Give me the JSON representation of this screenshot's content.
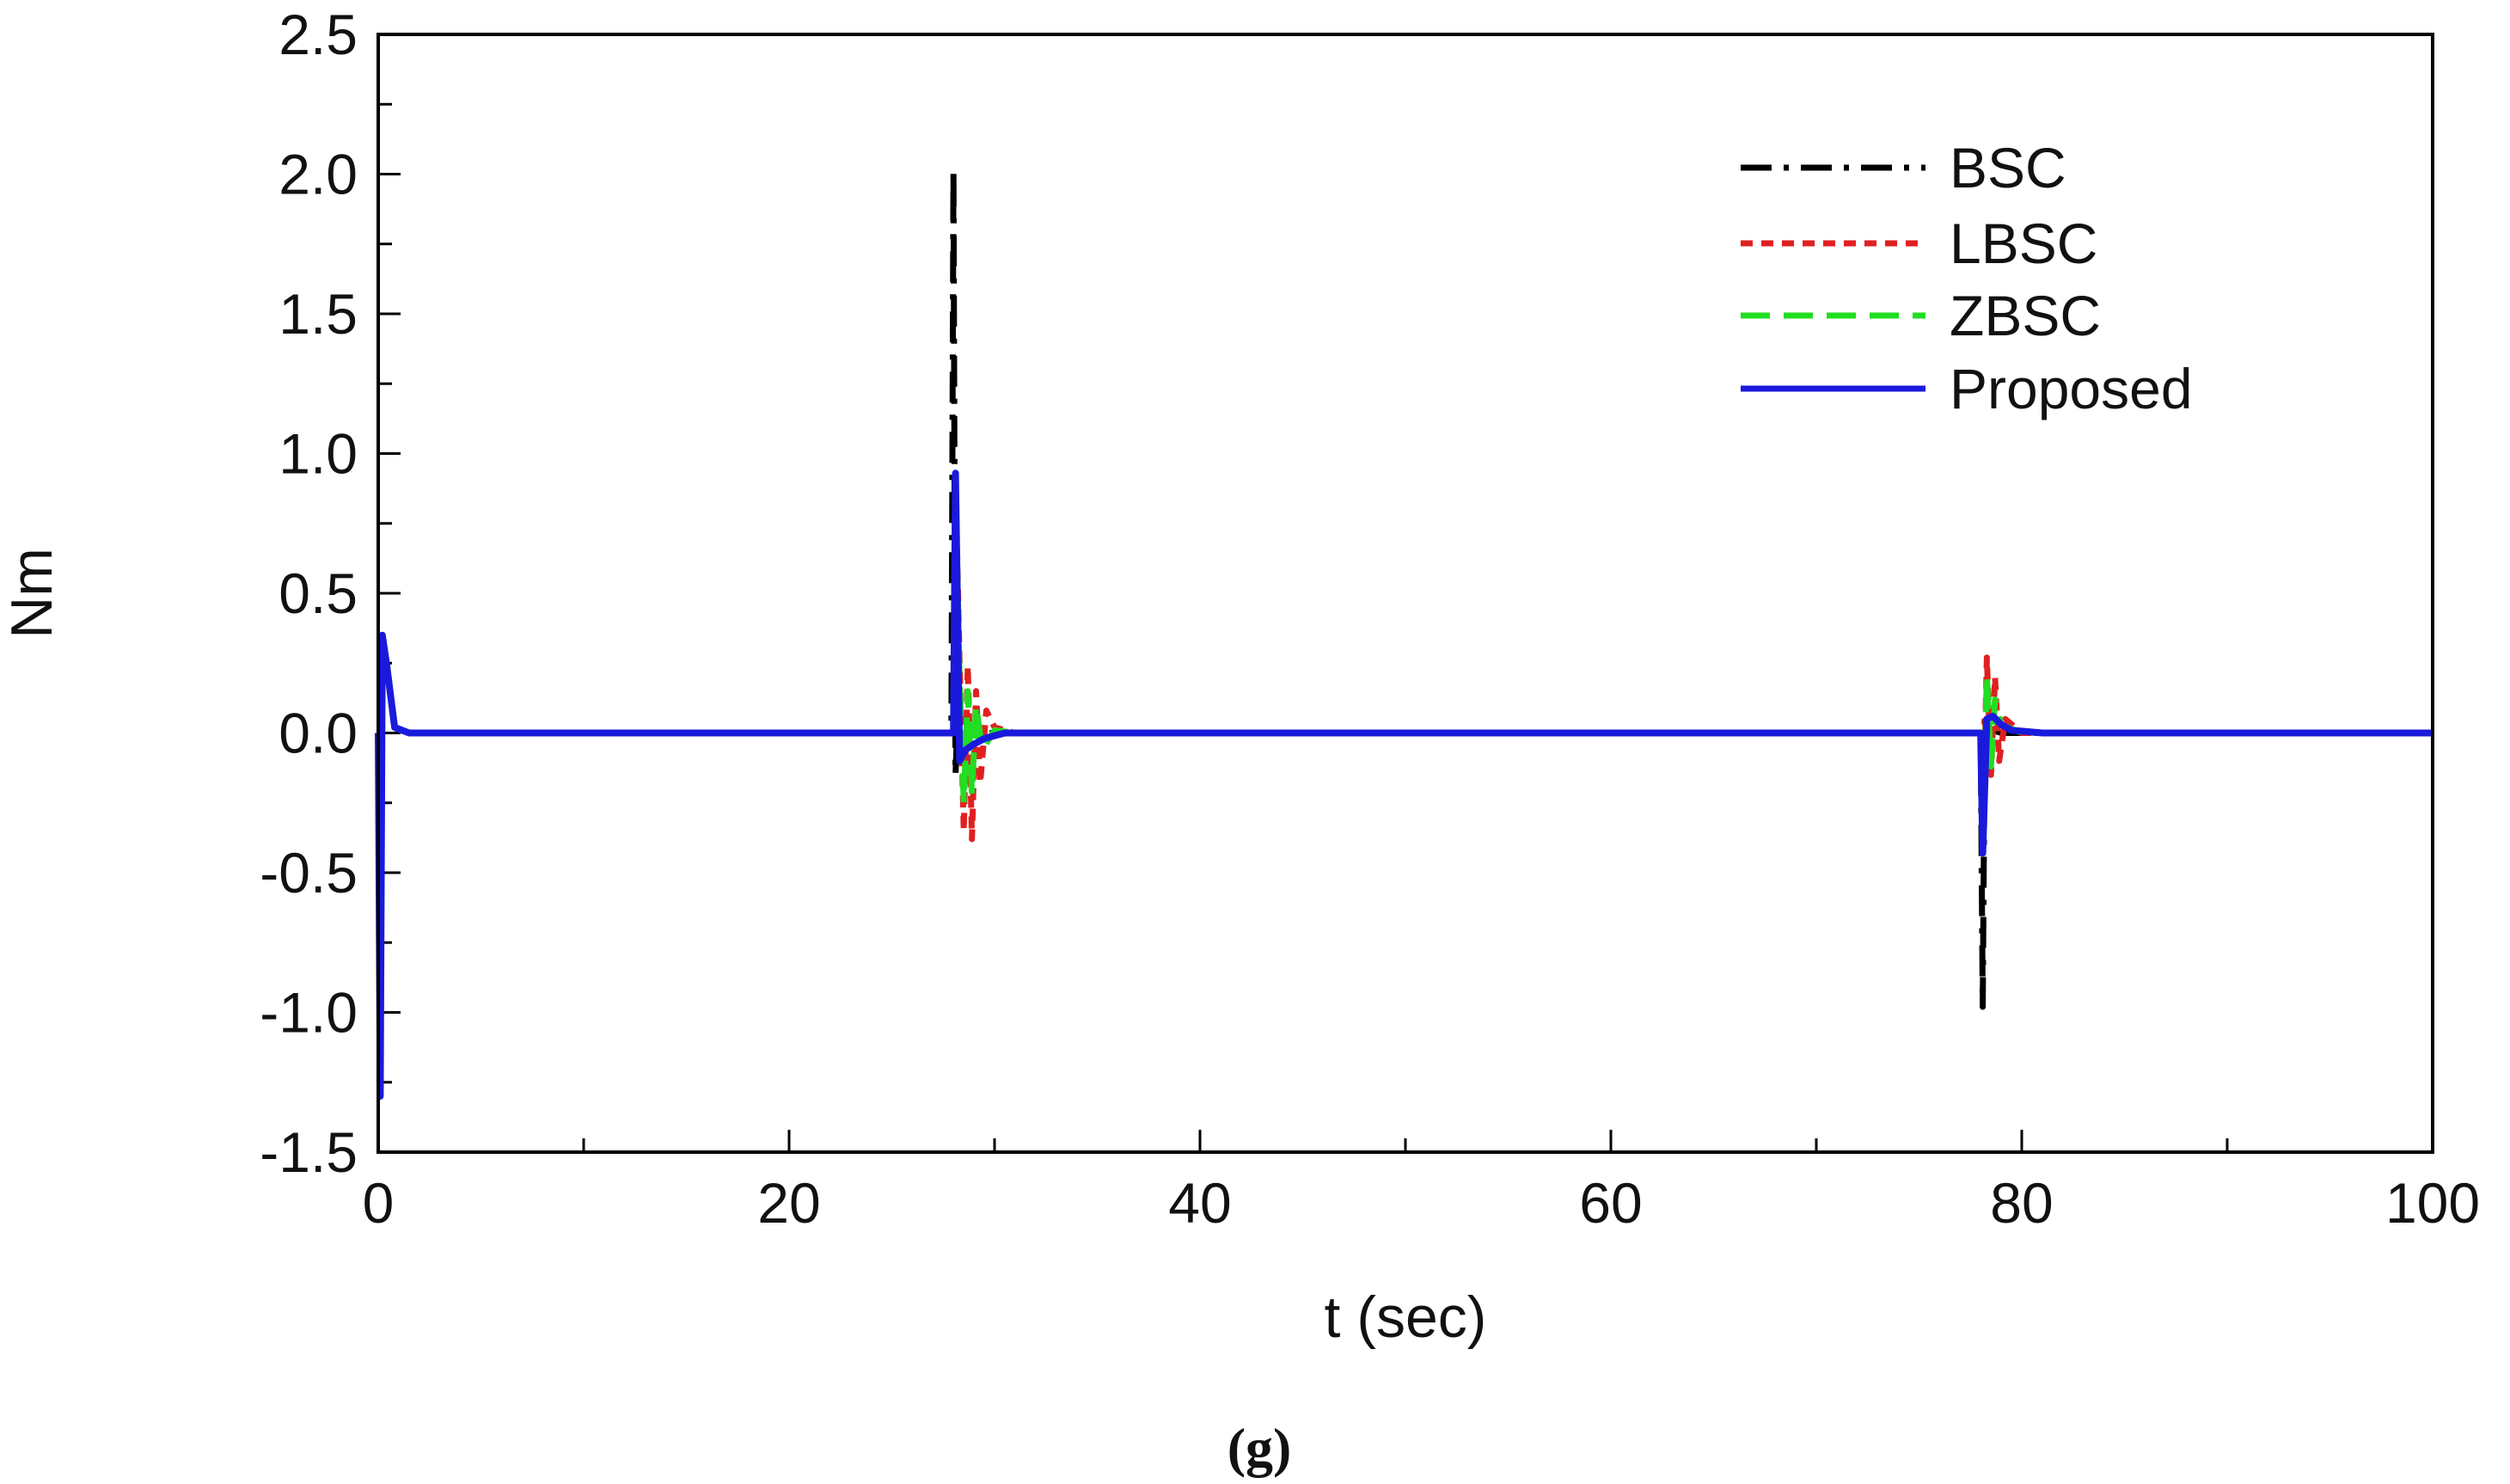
{
  "chart_data": {
    "type": "line",
    "xlabel": "t (sec)",
    "ylabel": "Nm",
    "xlim": [
      0,
      100
    ],
    "ylim": [
      -1.5,
      2.5
    ],
    "xticks": [
      "0",
      "20",
      "40",
      "60",
      "80",
      "100"
    ],
    "yticks": [
      "-1.5",
      "-1.0",
      "-0.5",
      "0.0",
      "0.5",
      "1.0",
      "1.5",
      "2.0",
      "2.5"
    ],
    "legend_position": "top-right",
    "caption": "(g)",
    "series": [
      {
        "name": "BSC",
        "color": "#000000",
        "style": "dash-dot",
        "x": [
          0,
          0.1,
          0.2,
          0.4,
          0.8,
          1.5,
          27.9,
          28.0,
          28.1,
          28.2,
          28.4,
          28.7,
          29.2,
          30.0,
          31.0,
          78.0,
          78.1,
          78.2,
          78.4,
          78.6,
          79.0,
          80.0,
          100
        ],
        "y": [
          0,
          -1.3,
          0.35,
          0.25,
          0.02,
          0,
          0,
          2.02,
          -0.15,
          0.05,
          -0.04,
          0.02,
          0,
          0,
          0,
          0,
          -0.98,
          0.05,
          0.03,
          0.01,
          0,
          0,
          0
        ]
      },
      {
        "name": "LBSC",
        "color": "#e02020",
        "style": "dash",
        "x": [
          0,
          0.1,
          0.2,
          0.4,
          0.8,
          1.5,
          28.0,
          28.1,
          28.3,
          28.5,
          28.7,
          28.9,
          29.1,
          29.3,
          29.6,
          30.0,
          31.0,
          78.0,
          78.1,
          78.3,
          78.5,
          78.7,
          78.9,
          79.2,
          80.0,
          100
        ],
        "y": [
          0,
          -1.3,
          0.35,
          0.25,
          0.02,
          0,
          0,
          0.9,
          0.25,
          -0.35,
          0.24,
          -0.38,
          0.15,
          -0.18,
          0.08,
          0.02,
          0,
          0,
          -0.4,
          0.27,
          -0.15,
          0.2,
          -0.1,
          0.05,
          0,
          0
        ]
      },
      {
        "name": "ZBSC",
        "color": "#22dd22",
        "style": "long-dash",
        "x": [
          0,
          0.1,
          0.2,
          0.4,
          0.8,
          1.5,
          28.0,
          28.1,
          28.3,
          28.5,
          28.7,
          28.9,
          29.1,
          29.4,
          30.0,
          31.0,
          78.0,
          78.1,
          78.3,
          78.5,
          78.7,
          79.0,
          80.0,
          100
        ],
        "y": [
          0,
          -1.3,
          0.35,
          0.25,
          0.02,
          0,
          0,
          0.9,
          0.18,
          -0.25,
          0.15,
          -0.22,
          0.1,
          -0.06,
          0.01,
          0,
          0,
          -0.4,
          0.21,
          -0.12,
          0.12,
          0.03,
          0,
          0
        ]
      },
      {
        "name": "Proposed",
        "color": "#1a1adc",
        "style": "solid",
        "x": [
          0,
          0.1,
          0.2,
          0.4,
          0.8,
          1.5,
          28.0,
          28.1,
          28.3,
          28.6,
          29.0,
          29.5,
          30.5,
          32.0,
          78.0,
          78.1,
          78.3,
          78.6,
          79.0,
          79.5,
          81.0,
          100
        ],
        "y": [
          0,
          -1.3,
          0.35,
          0.25,
          0.02,
          0,
          0,
          0.93,
          -0.1,
          -0.06,
          -0.04,
          -0.02,
          0,
          0,
          0,
          -0.43,
          0.05,
          0.06,
          0.03,
          0.01,
          0,
          0
        ]
      }
    ]
  }
}
